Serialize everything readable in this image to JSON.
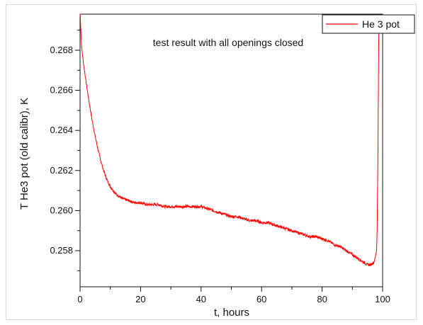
{
  "chart_data": {
    "type": "line",
    "annotation": "test result with all openings closed",
    "xlabel": "t, hours",
    "ylabel": "T He3 pot (old calibr), K",
    "xlim": [
      0,
      100
    ],
    "ylim": [
      0.2562,
      0.2698
    ],
    "x_ticks": [
      "0",
      "20",
      "40",
      "60",
      "80",
      "100"
    ],
    "y_ticks": [
      "0.258",
      "0.260",
      "0.262",
      "0.264",
      "0.266",
      "0.268"
    ],
    "legend": {
      "position": "top-right"
    },
    "series": [
      {
        "name": "He 3 pot",
        "color": "#ff0000",
        "x": [
          0,
          0.5,
          1,
          2,
          3,
          4,
          5,
          6,
          7,
          8,
          9,
          10,
          12,
          14,
          16,
          18,
          20,
          22,
          24,
          26,
          28,
          30,
          32,
          34,
          36,
          38,
          40,
          42,
          44,
          46,
          48,
          50,
          52,
          54,
          56,
          58,
          60,
          62,
          64,
          66,
          68,
          70,
          72,
          74,
          76,
          78,
          80,
          82,
          84,
          86,
          88,
          90,
          92,
          94,
          95,
          96,
          97,
          97.5,
          98,
          98.2,
          98.4,
          98.6,
          98.8
        ],
        "y": [
          0.2699,
          0.2682,
          0.2675,
          0.2664,
          0.2654,
          0.2645,
          0.2637,
          0.263,
          0.2624,
          0.2619,
          0.2615,
          0.2612,
          0.2608,
          0.2606,
          0.2605,
          0.2604,
          0.2604,
          0.2603,
          0.2603,
          0.2603,
          0.2602,
          0.2602,
          0.2602,
          0.2602,
          0.2602,
          0.2602,
          0.2602,
          0.2601,
          0.26,
          0.2599,
          0.2598,
          0.2597,
          0.2597,
          0.2596,
          0.2595,
          0.2595,
          0.2594,
          0.2594,
          0.2593,
          0.2592,
          0.2591,
          0.259,
          0.2589,
          0.2588,
          0.2587,
          0.2587,
          0.2586,
          0.2585,
          0.2583,
          0.2582,
          0.258,
          0.2578,
          0.2576,
          0.2574,
          0.2573,
          0.2573,
          0.2574,
          0.2576,
          0.258,
          0.259,
          0.262,
          0.266,
          0.2699
        ]
      }
    ]
  }
}
